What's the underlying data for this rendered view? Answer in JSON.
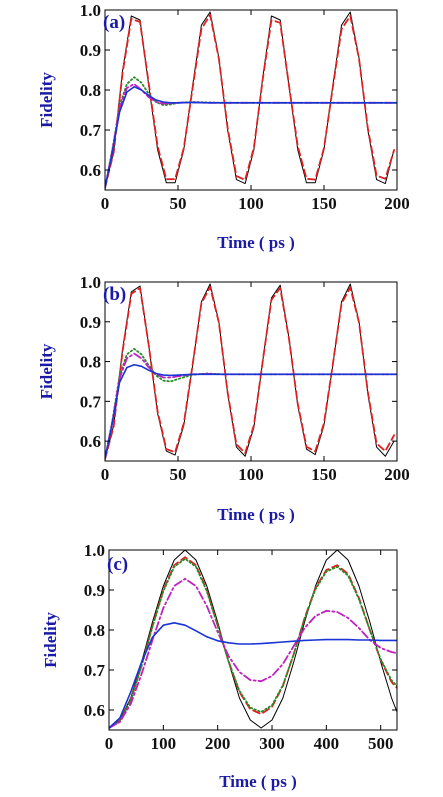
{
  "chart_data": [
    {
      "type": "line",
      "panel_label": "(a)",
      "xlabel": "Time ( ps )",
      "ylabel": "Fidelity",
      "xlim": [
        0,
        200
      ],
      "ylim": [
        0.55,
        1.0
      ],
      "xticks": [
        0,
        50,
        100,
        150,
        200
      ],
      "yticks": [
        0.6,
        0.7,
        0.8,
        0.9,
        1.0
      ],
      "xtick_labels": [
        "0",
        "50",
        "100",
        "150",
        "200"
      ],
      "ytick_labels": [
        "0.6",
        "0.7",
        "0.8",
        "0.9",
        "1.0"
      ],
      "grid": false,
      "legend": "none",
      "series": [
        {
          "style": "solid",
          "color": "#000000",
          "x": [
            0,
            6,
            12,
            18,
            24,
            30,
            36,
            42,
            48,
            54,
            60,
            66,
            72,
            78,
            84,
            90,
            96,
            102,
            108,
            114,
            120,
            126,
            132,
            138,
            144,
            150,
            156,
            162,
            168,
            174,
            180,
            186,
            192,
            198
          ],
          "y": [
            0.555,
            0.647,
            0.848,
            0.985,
            0.975,
            0.81,
            0.651,
            0.568,
            0.568,
            0.651,
            0.81,
            0.962,
            0.995,
            0.88,
            0.7,
            0.576,
            0.566,
            0.651,
            0.83,
            0.985,
            0.975,
            0.81,
            0.651,
            0.568,
            0.568,
            0.651,
            0.81,
            0.962,
            0.995,
            0.88,
            0.7,
            0.576,
            0.566,
            0.651
          ]
        },
        {
          "style": "dashed",
          "color": "#e02020",
          "x": [
            0,
            6,
            12,
            18,
            24,
            30,
            36,
            42,
            48,
            54,
            60,
            66,
            72,
            78,
            84,
            90,
            96,
            102,
            108,
            114,
            120,
            126,
            132,
            138,
            144,
            150,
            156,
            162,
            168,
            174,
            180,
            186,
            192,
            198
          ],
          "y": [
            0.555,
            0.645,
            0.842,
            0.978,
            0.97,
            0.815,
            0.66,
            0.577,
            0.577,
            0.655,
            0.805,
            0.952,
            0.988,
            0.878,
            0.705,
            0.585,
            0.575,
            0.656,
            0.826,
            0.975,
            0.968,
            0.812,
            0.66,
            0.578,
            0.576,
            0.655,
            0.806,
            0.952,
            0.985,
            0.878,
            0.705,
            0.586,
            0.578,
            0.65
          ]
        },
        {
          "style": "dotted",
          "color": "#2a8a2a",
          "x": [
            0,
            5,
            10,
            15,
            20,
            25,
            30,
            35,
            40,
            45,
            50,
            60,
            70,
            80,
            100,
            150,
            200
          ],
          "y": [
            0.555,
            0.65,
            0.76,
            0.815,
            0.832,
            0.818,
            0.79,
            0.77,
            0.762,
            0.764,
            0.768,
            0.77,
            0.769,
            0.768,
            0.768,
            0.768,
            0.768
          ]
        },
        {
          "style": "dashdot",
          "color": "#c020c0",
          "x": [
            0,
            5,
            10,
            15,
            20,
            25,
            30,
            35,
            40,
            45,
            50,
            60,
            70,
            80,
            100,
            150,
            200
          ],
          "y": [
            0.555,
            0.648,
            0.755,
            0.805,
            0.815,
            0.8,
            0.782,
            0.77,
            0.766,
            0.767,
            0.768,
            0.769,
            0.768,
            0.768,
            0.768,
            0.768,
            0.768
          ]
        },
        {
          "style": "solid",
          "color": "#1a33d6",
          "x": [
            0,
            5,
            10,
            15,
            20,
            25,
            30,
            35,
            40,
            45,
            50,
            60,
            70,
            80,
            100,
            150,
            200
          ],
          "y": [
            0.555,
            0.645,
            0.745,
            0.795,
            0.808,
            0.8,
            0.786,
            0.775,
            0.77,
            0.768,
            0.768,
            0.769,
            0.768,
            0.768,
            0.768,
            0.768,
            0.768
          ]
        }
      ]
    },
    {
      "type": "line",
      "panel_label": "(b)",
      "xlabel": "Time ( ps )",
      "ylabel": "Fidelity",
      "xlim": [
        0,
        200
      ],
      "ylim": [
        0.55,
        1.0
      ],
      "xticks": [
        0,
        50,
        100,
        150,
        200
      ],
      "yticks": [
        0.6,
        0.7,
        0.8,
        0.9,
        1.0
      ],
      "xtick_labels": [
        "0",
        "50",
        "100",
        "150",
        "200"
      ],
      "ytick_labels": [
        "0.6",
        "0.7",
        "0.8",
        "0.9",
        "1.0"
      ],
      "grid": false,
      "legend": "none",
      "series": [
        {
          "style": "solid",
          "color": "#000000",
          "x": [
            0,
            6,
            12,
            18,
            24,
            30,
            36,
            42,
            48,
            54,
            60,
            66,
            72,
            78,
            84,
            90,
            96,
            102,
            108,
            114,
            120,
            126,
            132,
            138,
            144,
            150,
            156,
            162,
            168,
            174,
            180,
            186,
            192,
            198
          ],
          "y": [
            0.555,
            0.64,
            0.83,
            0.975,
            0.99,
            0.84,
            0.67,
            0.575,
            0.565,
            0.64,
            0.79,
            0.95,
            0.995,
            0.9,
            0.72,
            0.585,
            0.562,
            0.635,
            0.8,
            0.96,
            0.992,
            0.86,
            0.69,
            0.58,
            0.566,
            0.64,
            0.79,
            0.95,
            0.995,
            0.9,
            0.72,
            0.585,
            0.562,
            0.6
          ]
        },
        {
          "style": "dashed",
          "color": "#e02020",
          "x": [
            0,
            6,
            12,
            18,
            24,
            30,
            36,
            42,
            48,
            54,
            60,
            66,
            72,
            78,
            84,
            90,
            96,
            102,
            108,
            114,
            120,
            126,
            132,
            138,
            144,
            150,
            156,
            162,
            168,
            174,
            180,
            186,
            192,
            198
          ],
          "y": [
            0.555,
            0.638,
            0.825,
            0.97,
            0.985,
            0.84,
            0.675,
            0.58,
            0.572,
            0.645,
            0.792,
            0.946,
            0.988,
            0.898,
            0.722,
            0.592,
            0.57,
            0.64,
            0.8,
            0.955,
            0.985,
            0.858,
            0.694,
            0.586,
            0.574,
            0.645,
            0.792,
            0.946,
            0.986,
            0.898,
            0.724,
            0.594,
            0.575,
            0.615
          ]
        },
        {
          "style": "dotted",
          "color": "#2a8a2a",
          "x": [
            0,
            5,
            10,
            15,
            20,
            25,
            30,
            35,
            40,
            45,
            50,
            60,
            70,
            80,
            100,
            150,
            200
          ],
          "y": [
            0.555,
            0.65,
            0.765,
            0.818,
            0.832,
            0.818,
            0.79,
            0.765,
            0.752,
            0.75,
            0.756,
            0.767,
            0.77,
            0.768,
            0.768,
            0.768,
            0.768
          ]
        },
        {
          "style": "dashdot",
          "color": "#c020c0",
          "x": [
            0,
            5,
            10,
            15,
            20,
            25,
            30,
            35,
            40,
            45,
            50,
            60,
            70,
            80,
            100,
            150,
            200
          ],
          "y": [
            0.555,
            0.648,
            0.758,
            0.808,
            0.82,
            0.808,
            0.785,
            0.768,
            0.76,
            0.76,
            0.763,
            0.768,
            0.769,
            0.768,
            0.768,
            0.768,
            0.768
          ]
        },
        {
          "style": "solid",
          "color": "#1a33d6",
          "x": [
            0,
            5,
            10,
            15,
            20,
            25,
            30,
            35,
            40,
            45,
            50,
            60,
            70,
            80,
            100,
            150,
            200
          ],
          "y": [
            0.555,
            0.645,
            0.748,
            0.785,
            0.792,
            0.788,
            0.778,
            0.77,
            0.766,
            0.765,
            0.766,
            0.768,
            0.768,
            0.768,
            0.768,
            0.768,
            0.768
          ]
        }
      ]
    },
    {
      "type": "line",
      "panel_label": "(c)",
      "xlabel": "Time ( ps )",
      "ylabel": "Fidelity",
      "xlim": [
        0,
        530
      ],
      "ylim": [
        0.55,
        1.0
      ],
      "xticks": [
        0,
        100,
        200,
        300,
        400,
        500
      ],
      "yticks": [
        0.6,
        0.7,
        0.8,
        0.9,
        1.0
      ],
      "xtick_labels": [
        "0",
        "100",
        "200",
        "300",
        "400",
        "500"
      ],
      "ytick_labels": [
        "0.6",
        "0.7",
        "0.8",
        "0.9",
        "1.0"
      ],
      "grid": false,
      "legend": "none",
      "series": [
        {
          "style": "solid",
          "color": "#000000",
          "x": [
            0,
            20,
            40,
            60,
            80,
            100,
            120,
            140,
            160,
            180,
            200,
            220,
            240,
            260,
            280,
            300,
            320,
            340,
            360,
            380,
            400,
            420,
            440,
            460,
            480,
            500,
            520,
            530
          ],
          "y": [
            0.555,
            0.575,
            0.63,
            0.72,
            0.82,
            0.91,
            0.975,
            1.0,
            0.975,
            0.91,
            0.82,
            0.72,
            0.63,
            0.575,
            0.555,
            0.575,
            0.63,
            0.72,
            0.82,
            0.91,
            0.975,
            1.0,
            0.975,
            0.91,
            0.82,
            0.72,
            0.63,
            0.595
          ]
        },
        {
          "style": "dashed",
          "color": "#e02020",
          "x": [
            0,
            20,
            40,
            60,
            80,
            100,
            120,
            140,
            160,
            180,
            200,
            220,
            240,
            260,
            280,
            300,
            320,
            340,
            360,
            380,
            400,
            420,
            440,
            460,
            480,
            500,
            520,
            530
          ],
          "y": [
            0.555,
            0.573,
            0.625,
            0.712,
            0.81,
            0.9,
            0.962,
            0.982,
            0.962,
            0.9,
            0.812,
            0.722,
            0.645,
            0.602,
            0.59,
            0.608,
            0.66,
            0.74,
            0.83,
            0.905,
            0.95,
            0.962,
            0.94,
            0.88,
            0.8,
            0.725,
            0.67,
            0.655
          ]
        },
        {
          "style": "dotted",
          "color": "#2a8a2a",
          "x": [
            0,
            20,
            40,
            60,
            80,
            100,
            120,
            140,
            160,
            180,
            200,
            220,
            240,
            260,
            280,
            300,
            320,
            340,
            360,
            380,
            400,
            420,
            440,
            460,
            480,
            500,
            520,
            530
          ],
          "y": [
            0.555,
            0.572,
            0.624,
            0.71,
            0.808,
            0.897,
            0.958,
            0.978,
            0.958,
            0.897,
            0.81,
            0.722,
            0.648,
            0.606,
            0.595,
            0.612,
            0.662,
            0.74,
            0.828,
            0.902,
            0.946,
            0.958,
            0.936,
            0.877,
            0.8,
            0.727,
            0.674,
            0.66
          ]
        },
        {
          "style": "dashdot",
          "color": "#c020c0",
          "x": [
            0,
            20,
            40,
            60,
            80,
            100,
            120,
            140,
            160,
            180,
            200,
            220,
            240,
            260,
            280,
            300,
            320,
            340,
            360,
            380,
            400,
            420,
            440,
            460,
            480,
            500,
            520,
            530
          ],
          "y": [
            0.555,
            0.57,
            0.615,
            0.69,
            0.775,
            0.855,
            0.91,
            0.928,
            0.91,
            0.86,
            0.795,
            0.735,
            0.695,
            0.675,
            0.672,
            0.685,
            0.715,
            0.76,
            0.805,
            0.835,
            0.848,
            0.845,
            0.83,
            0.805,
            0.775,
            0.755,
            0.745,
            0.742
          ]
        },
        {
          "style": "solid",
          "color": "#1a33d6",
          "x": [
            0,
            20,
            40,
            60,
            80,
            100,
            120,
            140,
            160,
            180,
            200,
            220,
            240,
            260,
            280,
            300,
            320,
            340,
            360,
            380,
            400,
            420,
            440,
            460,
            480,
            500,
            520,
            530
          ],
          "y": [
            0.555,
            0.58,
            0.645,
            0.72,
            0.782,
            0.812,
            0.818,
            0.812,
            0.798,
            0.783,
            0.773,
            0.768,
            0.765,
            0.765,
            0.766,
            0.768,
            0.77,
            0.772,
            0.774,
            0.775,
            0.776,
            0.776,
            0.776,
            0.775,
            0.775,
            0.774,
            0.774,
            0.774
          ]
        }
      ]
    }
  ]
}
